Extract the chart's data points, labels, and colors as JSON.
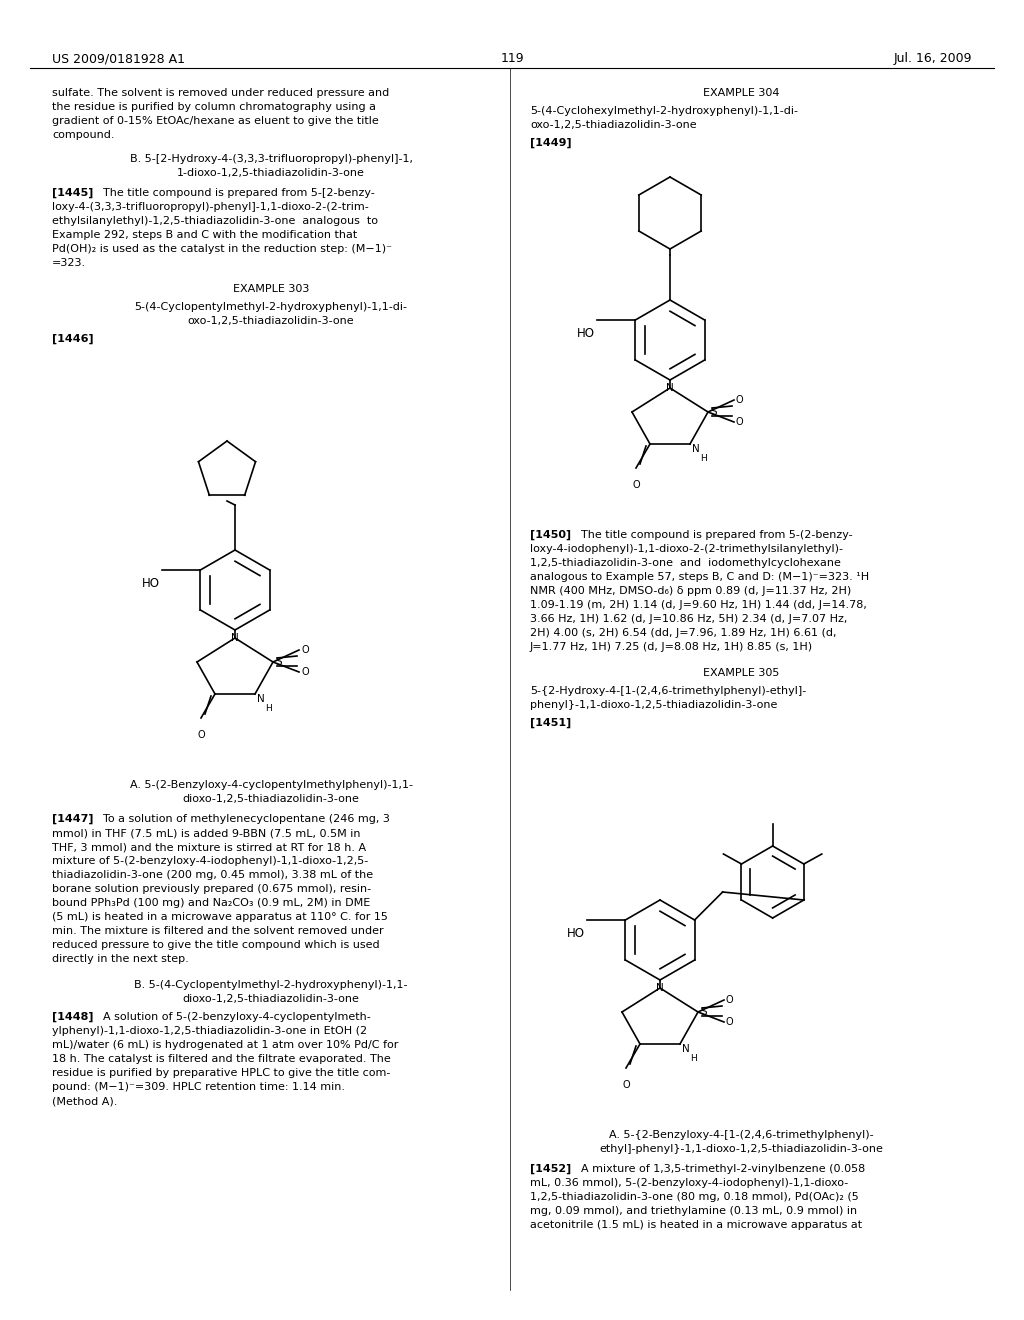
{
  "background_color": "#ffffff",
  "header_left": "US 2009/0181928 A1",
  "header_right": "Jul. 16, 2009",
  "page_number": "119",
  "body_size": 8.0,
  "header_size": 9.0
}
